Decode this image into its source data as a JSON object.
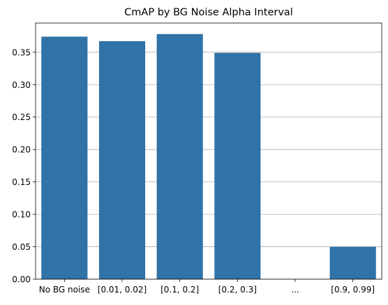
{
  "chart_data": {
    "type": "bar",
    "title": "CmAP by BG Noise Alpha Interval",
    "xlabel": "",
    "ylabel": "",
    "categories": [
      "No BG noise",
      "[0.01, 0.02]",
      "[0.1, 0.2]",
      "[0.2, 0.3]",
      "...",
      "[0.9, 0.99]"
    ],
    "values": [
      0.374,
      0.367,
      0.378,
      0.349,
      0,
      0.05
    ],
    "ylim": [
      0,
      0.395
    ],
    "yticks": [
      "0.00",
      "0.05",
      "0.10",
      "0.15",
      "0.20",
      "0.25",
      "0.30",
      "0.35"
    ],
    "ytick_values": [
      0,
      0.05,
      0.1,
      0.15,
      0.2,
      0.25,
      0.3,
      0.35
    ],
    "grid": "y",
    "legend": "none",
    "bar_color": "#2f73a8"
  }
}
